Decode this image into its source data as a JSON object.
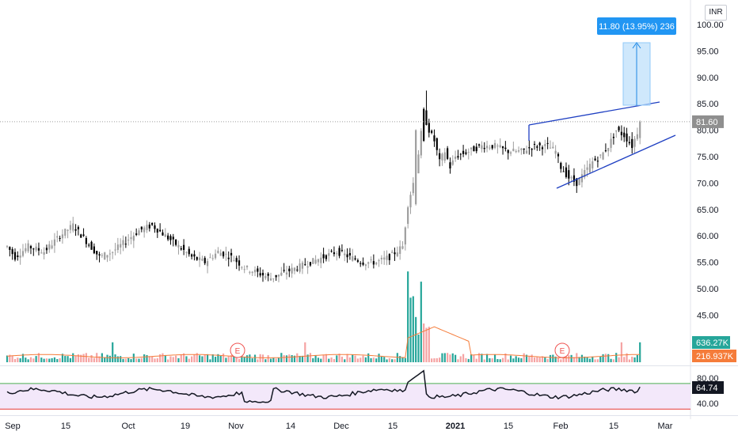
{
  "currency_button": "INR",
  "price_axis": {
    "ticks": [
      "100.00",
      "95.00",
      "90.00",
      "85.00",
      "80.00",
      "75.00",
      "70.00",
      "65.00",
      "60.00",
      "55.00",
      "50.00",
      "45.00"
    ],
    "last_price": "81.60",
    "last_price_color": "#8f8f8f"
  },
  "volume": {
    "last_label": "636.27K",
    "last_color": "#26a69a",
    "ma_label": "216.937K",
    "ma_color": "#f57c3a",
    "up_color": "#26a69a",
    "down_color": "#f5a3a3"
  },
  "rsi": {
    "ticks": [
      "80.00",
      "40.00"
    ],
    "value_label": "64.74",
    "upper_color": "#4caf50",
    "lower_color": "#e53935",
    "band_color": "#f3e8fa"
  },
  "earnings": [
    {
      "label": "E"
    },
    {
      "label": "E"
    }
  ],
  "measure_tag": {
    "text": "11.80 (13.95%) 236",
    "color": "#2196f3"
  },
  "time_axis": {
    "labels": [
      {
        "text": "Sep",
        "bold": false
      },
      {
        "text": "15",
        "bold": false
      },
      {
        "text": "Oct",
        "bold": false
      },
      {
        "text": "19",
        "bold": false
      },
      {
        "text": "Nov",
        "bold": false
      },
      {
        "text": "14",
        "bold": false
      },
      {
        "text": "Dec",
        "bold": false
      },
      {
        "text": "15",
        "bold": false
      },
      {
        "text": "2021",
        "bold": true
      },
      {
        "text": "15",
        "bold": false
      },
      {
        "text": "Feb",
        "bold": false
      },
      {
        "text": "15",
        "bold": false
      },
      {
        "text": "Mar",
        "bold": false
      }
    ]
  },
  "colors": {
    "candle_up": "#9e9e9e",
    "candle_down": "#000000",
    "trendline": "#1e3fc2",
    "grid_sep": "#e0e3eb"
  }
}
